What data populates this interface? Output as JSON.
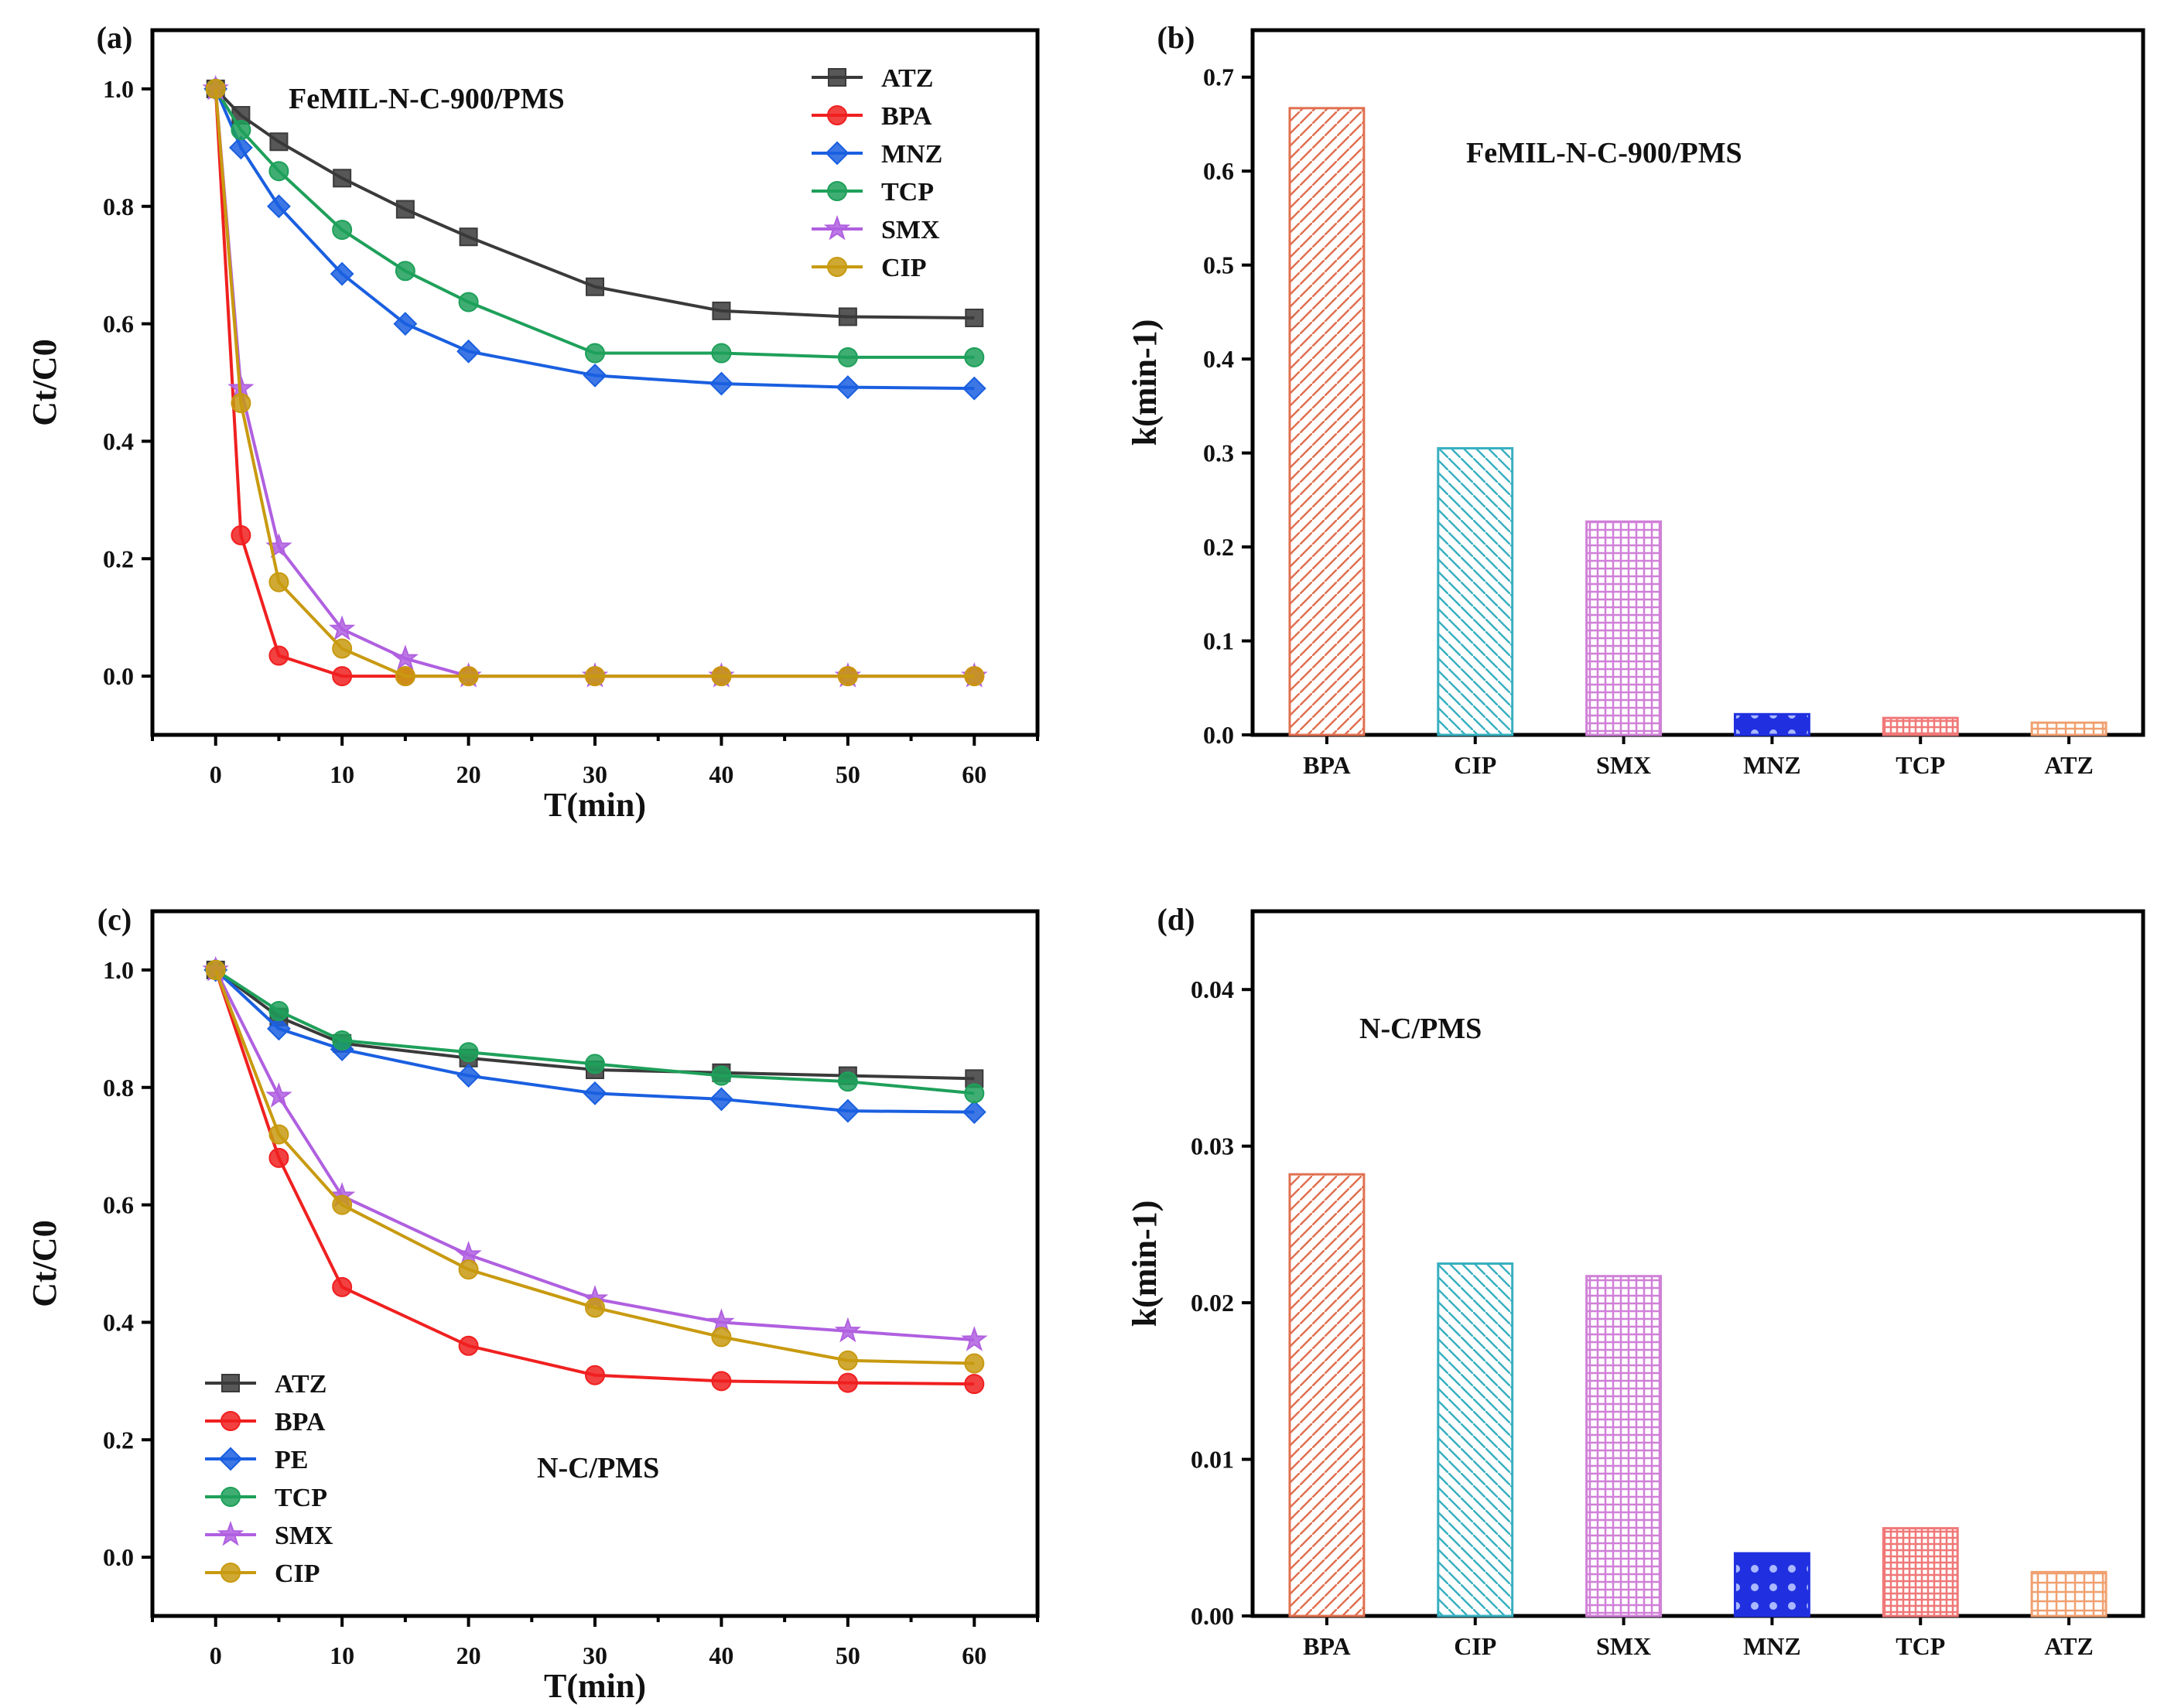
{
  "chart_data": [
    {
      "panel": "(a)",
      "type": "line",
      "annotation": "FeMIL-N-C-900/PMS",
      "xlabel": "T(min)",
      "ylabel": "Ct/C0",
      "xlim": [
        -5,
        65
      ],
      "ylim": [
        -0.1,
        1.1
      ],
      "xticks": [
        "0",
        "10",
        "20",
        "30",
        "40",
        "50",
        "60"
      ],
      "yticks": [
        "0.0",
        "0.2",
        "0.4",
        "0.6",
        "0.8",
        "1.0"
      ],
      "legend": "top-right",
      "x": [
        0,
        2,
        5,
        10,
        15,
        20,
        30,
        40,
        50,
        60
      ],
      "series": [
        {
          "name": "ATZ",
          "color": "#3a3a3a",
          "marker": "square",
          "values": [
            1,
            0.955,
            0.91,
            0.848,
            0.795,
            0.748,
            0.663,
            0.622,
            0.612,
            0.61
          ]
        },
        {
          "name": "BPA",
          "color": "#f02020",
          "marker": "circle",
          "values": [
            1,
            0.24,
            0.035,
            0,
            0,
            0,
            0,
            0,
            0,
            0
          ]
        },
        {
          "name": "MNZ",
          "color": "#1a5fe0",
          "marker": "diamond",
          "values": [
            1,
            0.9,
            0.8,
            0.685,
            0.6,
            0.553,
            0.512,
            0.498,
            0.492,
            0.49
          ]
        },
        {
          "name": "TCP",
          "color": "#1ea05a",
          "marker": "circle",
          "values": [
            1,
            0.93,
            0.86,
            0.76,
            0.69,
            0.637,
            0.55,
            0.55,
            0.543,
            0.543
          ]
        },
        {
          "name": "SMX",
          "color": "#b060e0",
          "marker": "star",
          "values": [
            1,
            0.49,
            0.22,
            0.08,
            0.03,
            0,
            0,
            0,
            0,
            0
          ]
        },
        {
          "name": "CIP",
          "color": "#c89a10",
          "marker": "circle",
          "values": [
            1,
            0.465,
            0.16,
            0.047,
            0,
            0,
            0,
            0,
            0,
            0
          ]
        }
      ]
    },
    {
      "panel": "(b)",
      "type": "bar",
      "annotation": "FeMIL-N-C-900/PMS",
      "ylabel": "k(min-1)",
      "ylim": [
        0,
        0.75
      ],
      "yticks": [
        "0.0",
        "0.1",
        "0.2",
        "0.3",
        "0.4",
        "0.5",
        "0.6",
        "0.7"
      ],
      "categories": [
        "BPA",
        "CIP",
        "SMX",
        "MNZ",
        "TCP",
        "ATZ"
      ],
      "values": [
        0.667,
        0.305,
        0.227,
        0.022,
        0.018,
        0.013
      ],
      "colors": [
        "#e07050",
        "#38b0c0",
        "#d080d8",
        "#2030e0",
        "#f07878",
        "#f0a070"
      ]
    },
    {
      "panel": "(c)",
      "type": "line",
      "annotation": "N-C/PMS",
      "xlabel": "T(min)",
      "ylabel": "Ct/C0",
      "xlim": [
        -5,
        65
      ],
      "ylim": [
        -0.1,
        1.1
      ],
      "xticks": [
        "0",
        "10",
        "20",
        "30",
        "40",
        "50",
        "60"
      ],
      "yticks": [
        "0.0",
        "0.2",
        "0.4",
        "0.6",
        "0.8",
        "1.0"
      ],
      "legend": "bottom-left",
      "x": [
        0,
        5,
        10,
        20,
        30,
        40,
        50,
        60
      ],
      "series": [
        {
          "name": "ATZ",
          "color": "#3a3a3a",
          "marker": "square",
          "values": [
            1,
            0.92,
            0.875,
            0.85,
            0.83,
            0.825,
            0.82,
            0.815
          ]
        },
        {
          "name": "BPA",
          "color": "#f02020",
          "marker": "circle",
          "values": [
            1,
            0.68,
            0.46,
            0.36,
            0.31,
            0.3,
            0.297,
            0.295
          ]
        },
        {
          "name": "PE",
          "color": "#1a5fe0",
          "marker": "diamond",
          "values": [
            1,
            0.9,
            0.865,
            0.82,
            0.79,
            0.78,
            0.76,
            0.758
          ]
        },
        {
          "name": "TCP",
          "color": "#1ea05a",
          "marker": "circle",
          "values": [
            1,
            0.93,
            0.88,
            0.86,
            0.84,
            0.82,
            0.81,
            0.79
          ]
        },
        {
          "name": "SMX",
          "color": "#b060e0",
          "marker": "star",
          "values": [
            1,
            0.785,
            0.615,
            0.515,
            0.44,
            0.4,
            0.385,
            0.37
          ]
        },
        {
          "name": "CIP",
          "color": "#c89a10",
          "marker": "circle",
          "values": [
            1,
            0.72,
            0.6,
            0.49,
            0.425,
            0.375,
            0.335,
            0.33
          ]
        }
      ]
    },
    {
      "panel": "(d)",
      "type": "bar",
      "annotation": "N-C/PMS",
      "ylabel": "k(min-1)",
      "ylim": [
        0,
        0.045
      ],
      "yticks": [
        "0.00",
        "0.01",
        "0.02",
        "0.03",
        "0.04"
      ],
      "categories": [
        "BPA",
        "CIP",
        "SMX",
        "MNZ",
        "TCP",
        "ATZ"
      ],
      "values": [
        0.0282,
        0.0225,
        0.0217,
        0.004,
        0.0056,
        0.0028
      ],
      "colors": [
        "#e07050",
        "#38b0c0",
        "#d080d8",
        "#2030e0",
        "#f07878",
        "#f0a070"
      ]
    }
  ]
}
